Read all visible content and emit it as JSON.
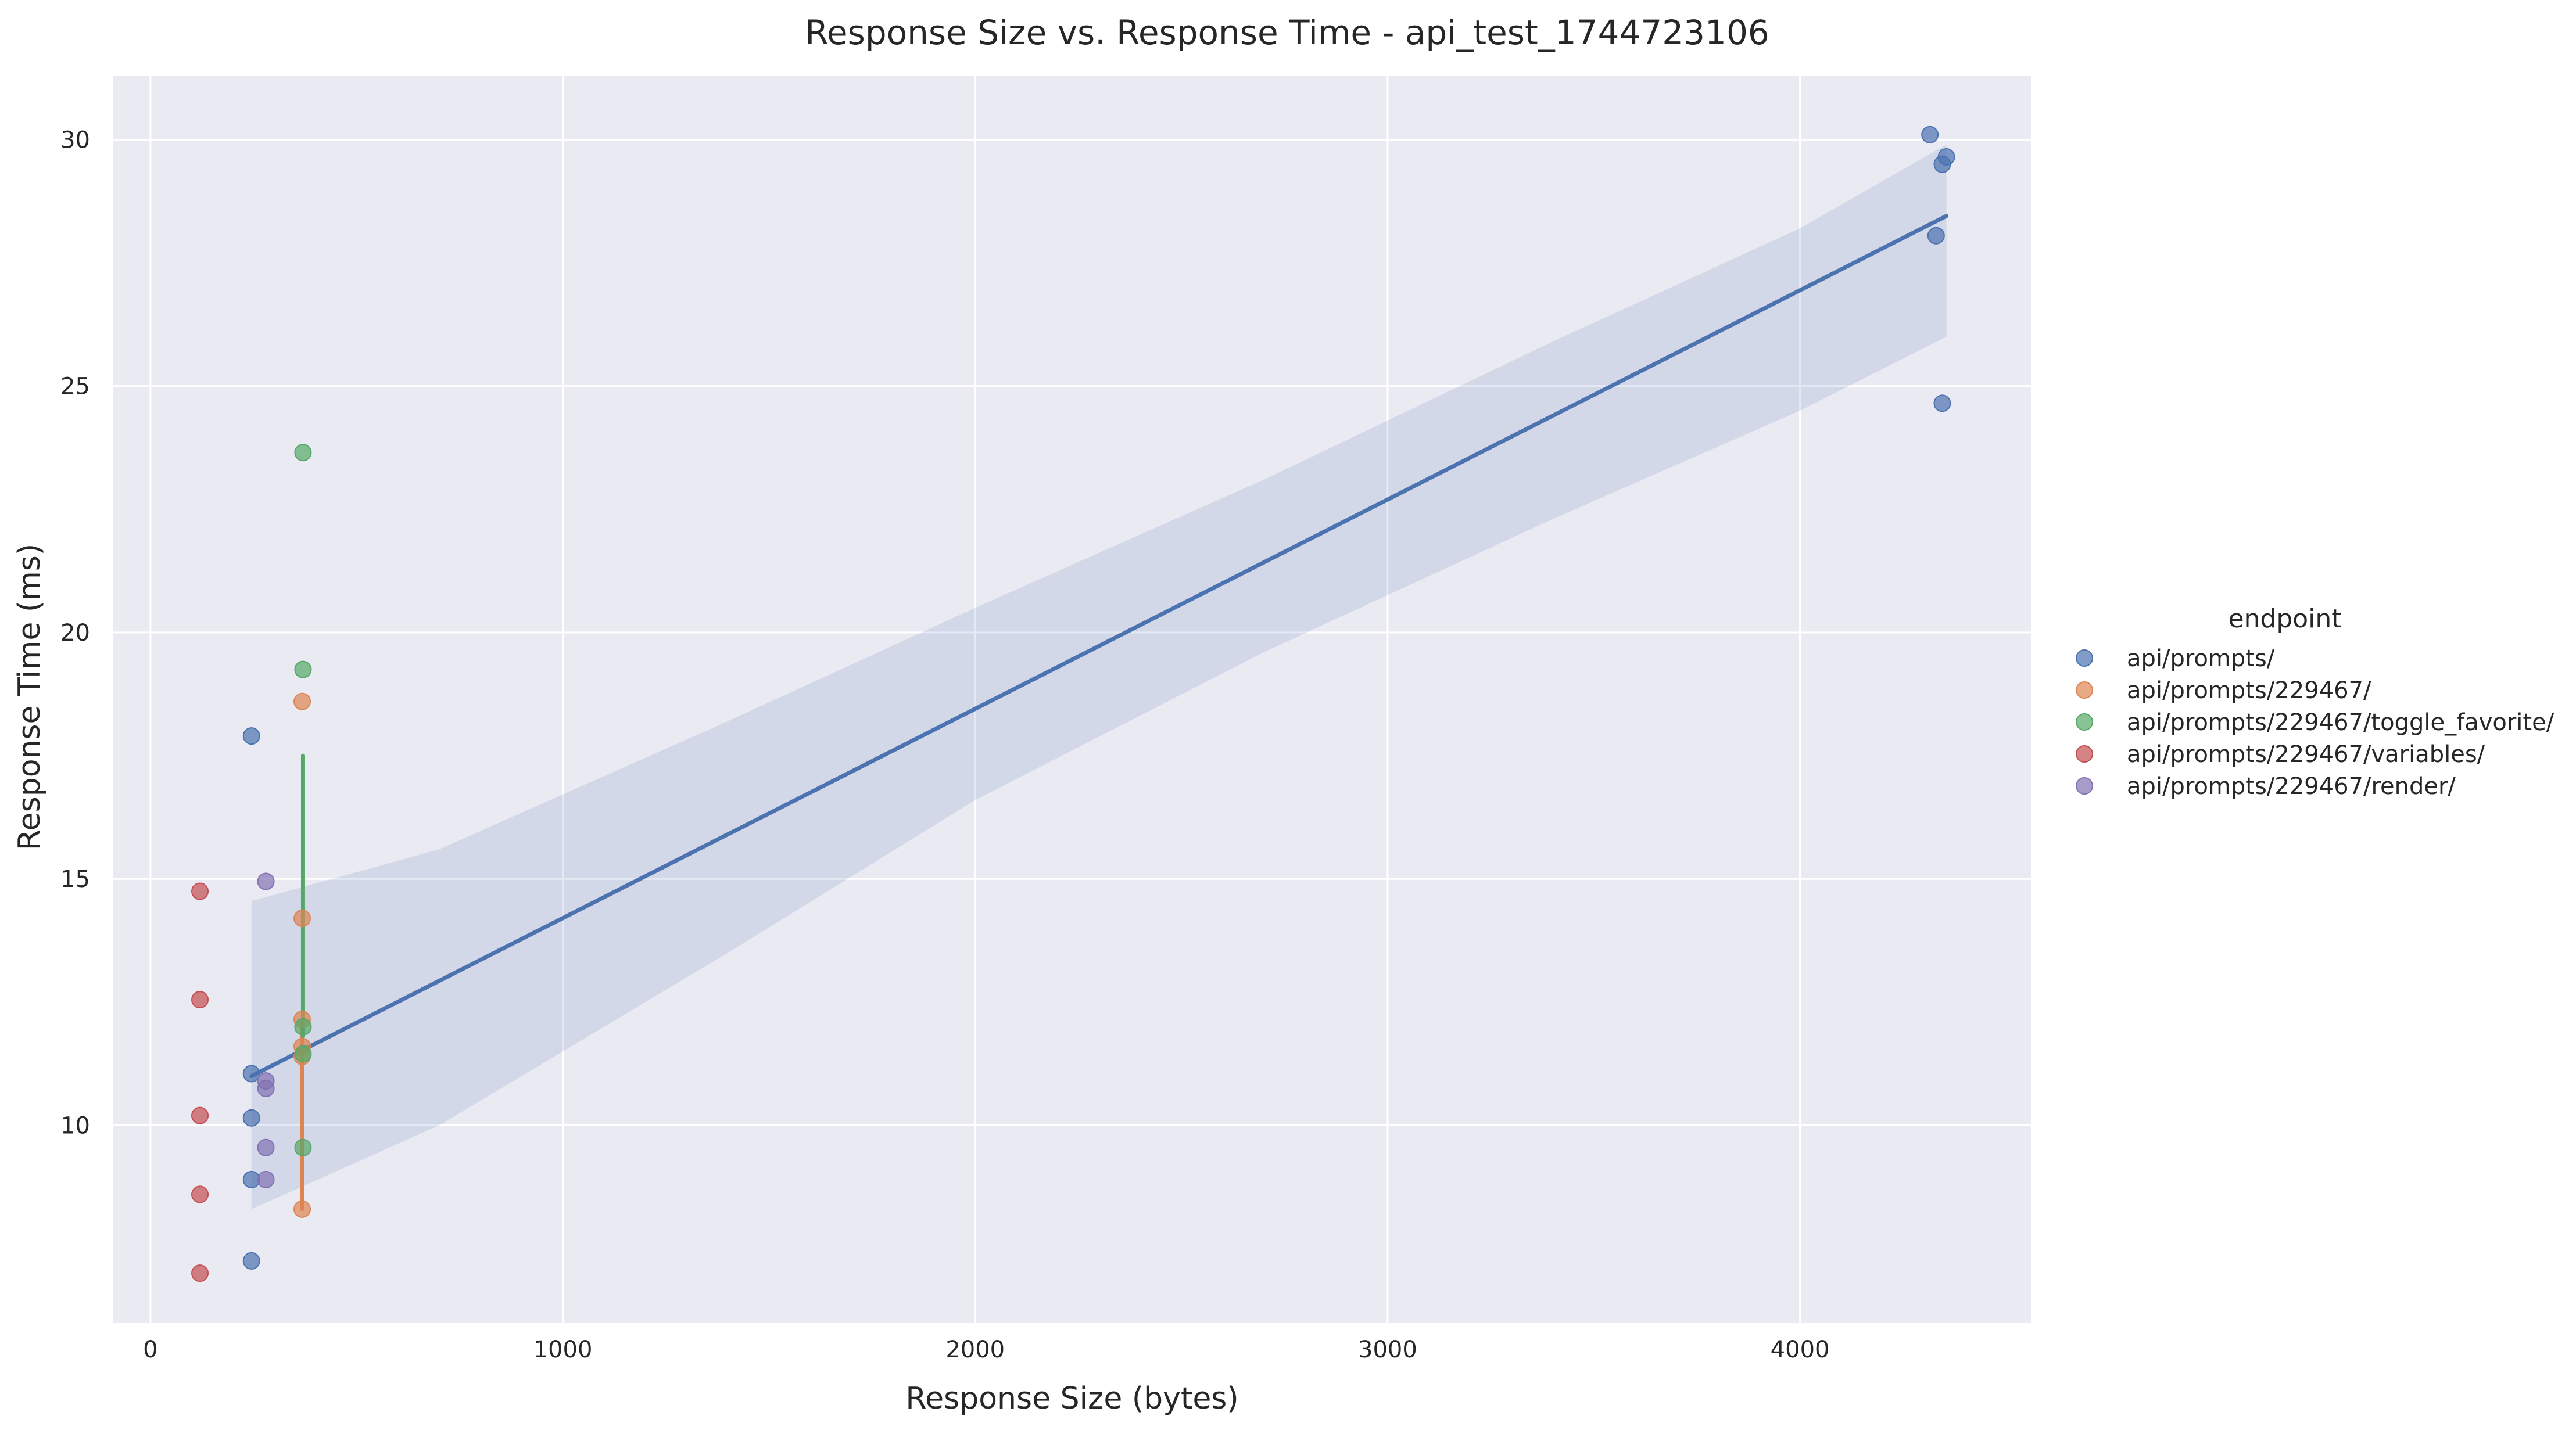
{
  "chart_data": {
    "type": "scatter",
    "title": "Response Size vs. Response Time - api_test_1744723106",
    "xlabel": "Response Size (bytes)",
    "ylabel": "Response Time (ms)",
    "xlim": [
      -90,
      4560
    ],
    "ylim": [
      6.0,
      31.3
    ],
    "xticks": [
      0,
      1000,
      2000,
      3000,
      4000
    ],
    "xtick_labels": [
      "0",
      "1000",
      "2000",
      "3000",
      "4000"
    ],
    "yticks": [
      10,
      15,
      20,
      25,
      30
    ],
    "ytick_labels": [
      "10",
      "15",
      "20",
      "25",
      "30"
    ],
    "grid": true,
    "legend": {
      "title": "endpoint",
      "position": "right"
    },
    "series": [
      {
        "name": "api/prompts/",
        "color": "#4c72b0",
        "points": [
          {
            "x": 245,
            "y": 17.9
          },
          {
            "x": 245,
            "y": 11.05
          },
          {
            "x": 245,
            "y": 10.15
          },
          {
            "x": 245,
            "y": 8.9
          },
          {
            "x": 245,
            "y": 7.25
          },
          {
            "x": 4315,
            "y": 30.1
          },
          {
            "x": 4355,
            "y": 29.65
          },
          {
            "x": 4345,
            "y": 29.5
          },
          {
            "x": 4330,
            "y": 28.05
          },
          {
            "x": 4345,
            "y": 24.65
          }
        ],
        "fit": {
          "x": [
            245,
            4355
          ],
          "y": [
            11.0,
            28.45
          ]
        },
        "ci": {
          "x": [
            245,
            700,
            1400,
            2000,
            2700,
            3400,
            4000,
            4355
          ],
          "lower": [
            8.3,
            10.0,
            13.5,
            16.6,
            19.6,
            22.3,
            24.5,
            26.0
          ],
          "upper": [
            14.55,
            15.6,
            18.2,
            20.5,
            23.1,
            25.9,
            28.2,
            29.9
          ]
        }
      },
      {
        "name": "api/prompts/229467/",
        "color": "#dd8452",
        "points": [
          {
            "x": 368,
            "y": 18.6
          },
          {
            "x": 368,
            "y": 14.2
          },
          {
            "x": 368,
            "y": 12.15
          },
          {
            "x": 368,
            "y": 11.6
          },
          {
            "x": 368,
            "y": 11.4
          },
          {
            "x": 368,
            "y": 8.3
          }
        ],
        "fit": {
          "x": [
            368,
            368
          ],
          "y": [
            8.3,
            12.1
          ]
        }
      },
      {
        "name": "api/prompts/229467/toggle_favorite/",
        "color": "#55a868",
        "points": [
          {
            "x": 370,
            "y": 23.65
          },
          {
            "x": 370,
            "y": 19.25
          },
          {
            "x": 370,
            "y": 12.0
          },
          {
            "x": 370,
            "y": 11.45
          },
          {
            "x": 370,
            "y": 9.55
          }
        ],
        "fit": {
          "x": [
            370,
            370
          ],
          "y": [
            11.8,
            17.5
          ]
        }
      },
      {
        "name": "api/prompts/229467/variables/",
        "color": "#c44e52",
        "points": [
          {
            "x": 120,
            "y": 14.75
          },
          {
            "x": 120,
            "y": 12.55
          },
          {
            "x": 120,
            "y": 10.2
          },
          {
            "x": 120,
            "y": 8.6
          },
          {
            "x": 120,
            "y": 7.0
          }
        ]
      },
      {
        "name": "api/prompts/229467/render/",
        "color": "#8172b3",
        "points": [
          {
            "x": 280,
            "y": 14.95
          },
          {
            "x": 280,
            "y": 10.9
          },
          {
            "x": 280,
            "y": 10.75
          },
          {
            "x": 280,
            "y": 9.55
          },
          {
            "x": 280,
            "y": 8.9
          }
        ]
      }
    ]
  }
}
